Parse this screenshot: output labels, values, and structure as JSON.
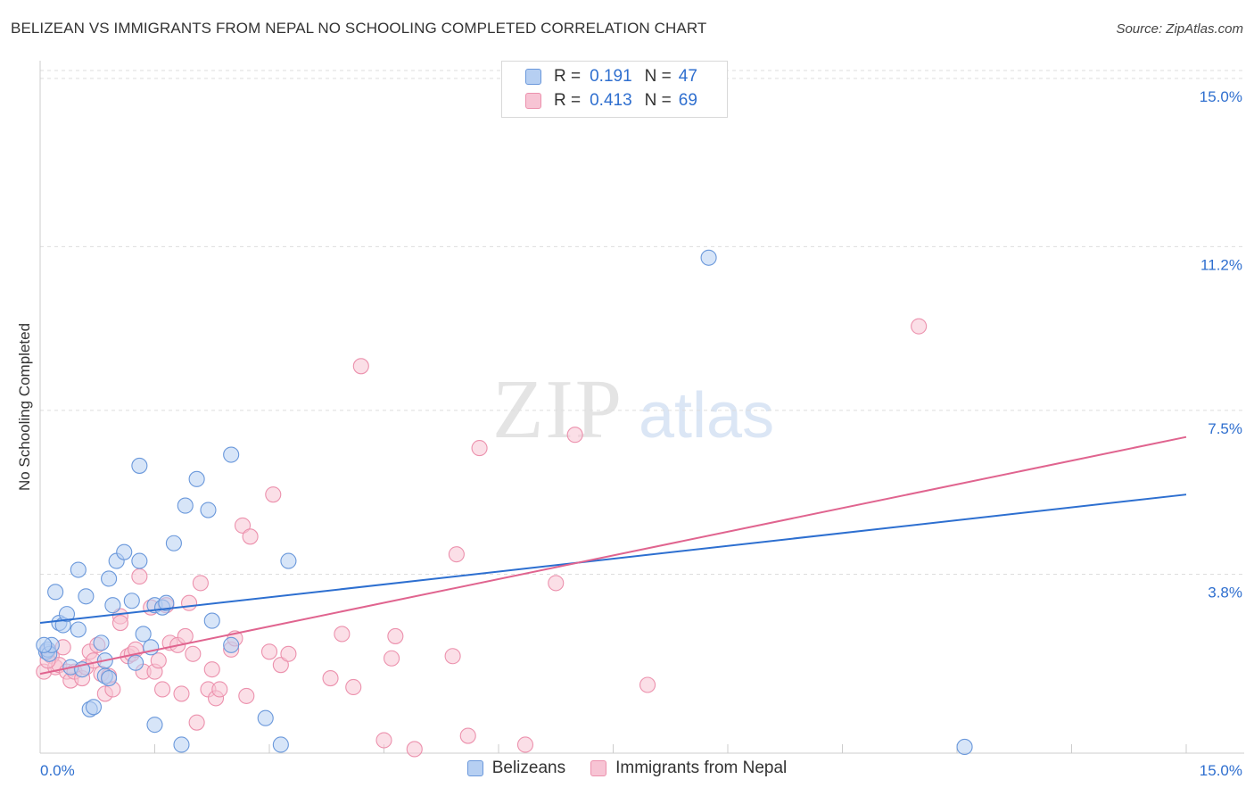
{
  "title": "BELIZEAN VS IMMIGRANTS FROM NEPAL NO SCHOOLING COMPLETED CORRELATION CHART",
  "source": "Source: ZipAtlas.com",
  "watermark": {
    "zip": "ZIP",
    "atlas": "atlas"
  },
  "legend": [
    {
      "r_label": "R =",
      "r_value": "0.191",
      "n_label": "N =",
      "n_value": "47"
    },
    {
      "r_label": "R =",
      "r_value": "0.413",
      "n_label": "N =",
      "n_value": "69"
    }
  ],
  "chart_data": {
    "type": "scatter",
    "title": "BELIZEAN VS IMMIGRANTS FROM NEPAL NO SCHOOLING COMPLETED CORRELATION CHART",
    "xlabel": "",
    "ylabel": "No Schooling Completed",
    "xlim": [
      0,
      15
    ],
    "ylim": [
      0,
      15.4
    ],
    "x_tick_labels": [
      "0.0%",
      "15.0%"
    ],
    "y_ticks": [
      3.8,
      7.5,
      11.2,
      15.0
    ],
    "y_tick_labels": [
      "3.8%",
      "7.5%",
      "11.2%",
      "15.0%"
    ],
    "colors": {
      "blue_stroke": "#6a98db",
      "blue_fill": "#b6cff2",
      "blue_line": "#2d6fd0",
      "pink_stroke": "#ec91ad",
      "pink_fill": "#f7c4d4",
      "pink_line": "#e0648f",
      "grid": "#dddddd",
      "tick_text": "#2f6fcf"
    },
    "series": [
      {
        "name": "Belizeans",
        "r": 0.191,
        "n": 47,
        "trend": [
          [
            0,
            2.7
          ],
          [
            15,
            5.6
          ]
        ],
        "points": [
          [
            0.08,
            2.05
          ],
          [
            0.1,
            2.1
          ],
          [
            0.12,
            2.0
          ],
          [
            0.15,
            2.2
          ],
          [
            0.2,
            3.4
          ],
          [
            0.25,
            2.7
          ],
          [
            0.3,
            2.65
          ],
          [
            0.35,
            2.9
          ],
          [
            0.4,
            1.7
          ],
          [
            0.5,
            3.9
          ],
          [
            0.5,
            2.55
          ],
          [
            0.55,
            1.65
          ],
          [
            0.6,
            3.3
          ],
          [
            0.65,
            0.75
          ],
          [
            0.7,
            0.8
          ],
          [
            0.8,
            2.25
          ],
          [
            0.85,
            1.5
          ],
          [
            0.9,
            1.45
          ],
          [
            0.85,
            1.85
          ],
          [
            0.9,
            3.7
          ],
          [
            0.95,
            3.1
          ],
          [
            1.0,
            4.1
          ],
          [
            1.1,
            4.3
          ],
          [
            1.2,
            3.2
          ],
          [
            1.25,
            1.8
          ],
          [
            1.3,
            6.25
          ],
          [
            1.3,
            4.1
          ],
          [
            1.35,
            2.45
          ],
          [
            1.45,
            2.15
          ],
          [
            1.5,
            3.1
          ],
          [
            1.5,
            0.4
          ],
          [
            1.6,
            3.05
          ],
          [
            1.65,
            3.15
          ],
          [
            1.75,
            4.5
          ],
          [
            1.85,
            -0.05
          ],
          [
            1.9,
            5.35
          ],
          [
            2.05,
            5.95
          ],
          [
            2.2,
            5.25
          ],
          [
            2.25,
            2.75
          ],
          [
            2.5,
            6.5
          ],
          [
            2.5,
            2.2
          ],
          [
            2.95,
            0.55
          ],
          [
            3.15,
            -0.05
          ],
          [
            3.25,
            4.1
          ],
          [
            8.75,
            10.95
          ],
          [
            12.1,
            -0.1
          ],
          [
            0.05,
            2.2
          ]
        ]
      },
      {
        "name": "Immigrants from Nepal",
        "r": 0.413,
        "n": 69,
        "trend": [
          [
            0,
            1.55
          ],
          [
            15,
            6.9
          ]
        ],
        "points": [
          [
            0.05,
            1.6
          ],
          [
            0.1,
            2.05
          ],
          [
            0.15,
            1.95
          ],
          [
            0.2,
            1.7
          ],
          [
            0.25,
            1.75
          ],
          [
            0.3,
            2.15
          ],
          [
            0.35,
            1.6
          ],
          [
            0.4,
            1.4
          ],
          [
            0.45,
            1.6
          ],
          [
            0.55,
            1.45
          ],
          [
            0.6,
            1.7
          ],
          [
            0.65,
            2.05
          ],
          [
            0.7,
            1.85
          ],
          [
            0.75,
            2.2
          ],
          [
            0.8,
            1.55
          ],
          [
            0.85,
            1.1
          ],
          [
            0.9,
            1.5
          ],
          [
            0.95,
            1.2
          ],
          [
            1.05,
            2.85
          ],
          [
            1.05,
            2.7
          ],
          [
            1.15,
            1.95
          ],
          [
            1.2,
            2.0
          ],
          [
            1.25,
            2.1
          ],
          [
            1.3,
            3.75
          ],
          [
            1.35,
            1.6
          ],
          [
            1.45,
            3.05
          ],
          [
            1.5,
            1.6
          ],
          [
            1.6,
            1.2
          ],
          [
            1.65,
            3.1
          ],
          [
            1.7,
            2.25
          ],
          [
            1.8,
            2.2
          ],
          [
            1.85,
            1.1
          ],
          [
            1.9,
            2.4
          ],
          [
            1.95,
            3.15
          ],
          [
            2.0,
            2.0
          ],
          [
            2.05,
            0.45
          ],
          [
            2.1,
            3.6
          ],
          [
            2.2,
            1.2
          ],
          [
            2.25,
            1.65
          ],
          [
            2.3,
            1.0
          ],
          [
            2.35,
            1.2
          ],
          [
            2.5,
            2.1
          ],
          [
            2.55,
            2.35
          ],
          [
            2.65,
            4.9
          ],
          [
            2.7,
            1.05
          ],
          [
            2.75,
            4.65
          ],
          [
            3.0,
            2.05
          ],
          [
            3.05,
            5.6
          ],
          [
            3.15,
            1.75
          ],
          [
            3.25,
            2.0
          ],
          [
            3.8,
            1.45
          ],
          [
            3.95,
            2.45
          ],
          [
            4.1,
            1.25
          ],
          [
            4.2,
            8.5
          ],
          [
            4.5,
            0.05
          ],
          [
            4.6,
            1.9
          ],
          [
            4.65,
            2.4
          ],
          [
            4.9,
            -0.15
          ],
          [
            5.4,
            1.95
          ],
          [
            5.45,
            4.25
          ],
          [
            5.6,
            0.15
          ],
          [
            5.75,
            6.65
          ],
          [
            6.35,
            -0.05
          ],
          [
            6.75,
            3.6
          ],
          [
            7.0,
            6.95
          ],
          [
            7.95,
            1.3
          ],
          [
            11.5,
            9.4
          ],
          [
            0.1,
            1.85
          ],
          [
            1.55,
            1.85
          ]
        ]
      }
    ]
  }
}
